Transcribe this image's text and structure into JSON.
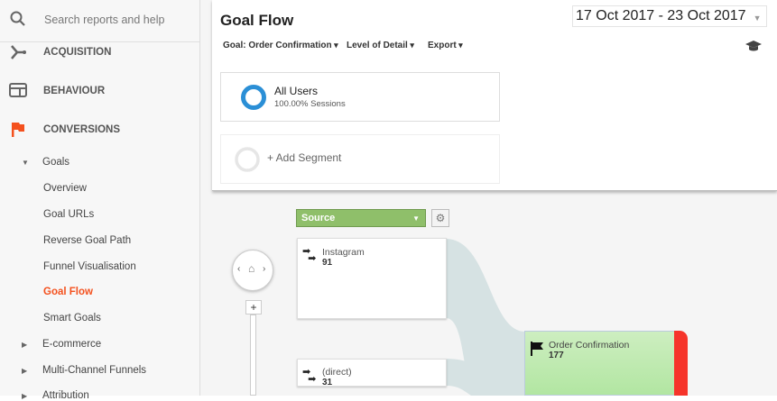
{
  "sidebar": {
    "search_placeholder": "Search reports and help",
    "sections": [
      "ACQUISITION",
      "BEHAVIOUR",
      "CONVERSIONS"
    ],
    "goals_label": "Goals",
    "goal_items": [
      "Overview",
      "Goal URLs",
      "Reverse Goal Path",
      "Funnel Visualisation",
      "Goal Flow",
      "Smart Goals"
    ],
    "active_item": "Goal Flow",
    "collapsed_items": [
      "E-commerce",
      "Multi-Channel Funnels",
      "Attribution"
    ]
  },
  "header": {
    "title": "Goal Flow",
    "date_range": "17 Oct 2017 - 23 Oct 2017",
    "toolbar": {
      "goal": "Goal: Order Confirmation",
      "detail": "Level of Detail",
      "export": "Export"
    }
  },
  "segments": {
    "all_users": "All Users",
    "all_users_sub": "100.00% Sessions",
    "add_segment": "+ Add Segment"
  },
  "flow": {
    "dimension": "Source",
    "sources": [
      {
        "name": "Instagram",
        "value": "91"
      },
      {
        "name": "(direct)",
        "value": "31"
      }
    ],
    "goal": {
      "name": "Order Confirmation",
      "value": "177"
    }
  },
  "colors": {
    "accent": "#f4511e",
    "source_green": "#8fbf6a",
    "goal_green": "#c2ecb4",
    "exit_red": "#f6342a",
    "flow": "#d6e2e3"
  }
}
